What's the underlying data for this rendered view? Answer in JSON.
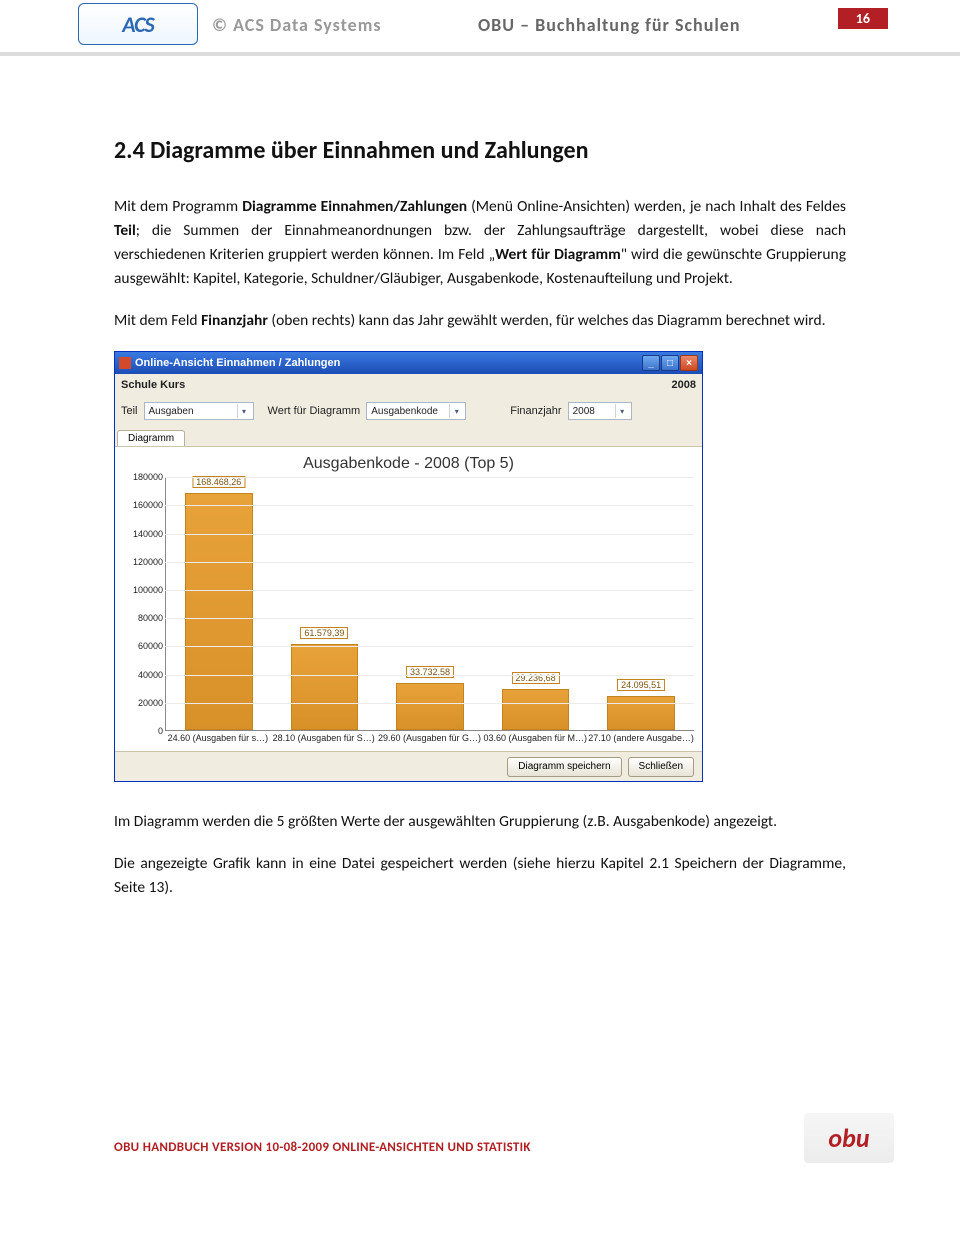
{
  "header": {
    "logo_text": "ACS",
    "copyright": "©  ACS Data Systems",
    "title": "OBU – Buchhaltung für Schulen",
    "page_number": "16"
  },
  "section": {
    "heading": "2.4 Diagramme über Einnahmen und Zahlungen",
    "p1_a": "Mit dem Programm ",
    "p1_b": "Diagramme Einnahmen/Zahlungen",
    "p1_c": " (Menü Online-Ansichten) werden, je nach Inhalt des Feldes ",
    "p1_d": "Teil",
    "p1_e": "; die Summen der Einnahmeanordnungen bzw. der Zahlungsaufträge dargestellt, wobei diese nach verschiedenen Kriterien gruppiert werden können. Im Feld „",
    "p1_f": "Wert für Diagramm",
    "p1_g": "\" wird die gewünschte Gruppierung ausgewählt: Kapitel, Kategorie, Schuldner/Gläubiger, Ausgabenkode, Kostenaufteilung und Projekt.",
    "p2_a": "Mit dem Feld ",
    "p2_b": "Finanzjahr",
    "p2_c": " (oben rechts) kann das Jahr gewählt werden, für welches das Diagramm berechnet wird.",
    "p3": "Im Diagramm werden die 5 größten Werte der ausgewählten Gruppierung (z.B. Ausgabenkode) angezeigt.",
    "p4": "Die angezeigte Grafik kann in eine Datei gespeichert werden (siehe hierzu Kapitel 2.1 Speichern der Diagramme, Seite 13)."
  },
  "app": {
    "titlebar_text": "Online-Ansicht Einnahmen / Zahlungen",
    "schule_label": "Schule Kurs",
    "schule_year": "2008",
    "filters": {
      "teil_label": "Teil",
      "teil_value": "Ausgaben",
      "wert_label": "Wert für Diagramm",
      "wert_value": "Ausgabenkode",
      "jahr_label": "Finanzjahr",
      "jahr_value": "2008"
    },
    "tab_label": "Diagramm",
    "buttons": {
      "save": "Diagramm speichern",
      "close": "Schließen"
    }
  },
  "chart": {
    "type": "bar",
    "title": "Ausgabenkode - 2008 (Top 5)",
    "title_fontsize": 16,
    "y_max": 180000,
    "y_step": 20000,
    "y_ticks": [
      "0",
      "20000",
      "40000",
      "60000",
      "80000",
      "100000",
      "120000",
      "140000",
      "160000",
      "180000"
    ],
    "y_tick_positions_pct": [
      100,
      88.89,
      77.78,
      66.67,
      55.56,
      44.44,
      33.33,
      22.22,
      11.11,
      0
    ],
    "bar_fill": "#e8a23a",
    "bar_border": "#c5831f",
    "label_border": "#c5831f",
    "label_text_color": "#7a5410",
    "grid_color": "#ebebeb",
    "axis_color": "#888888",
    "background": "#ffffff",
    "bar_width_ratio": 0.64,
    "categories": [
      "24.60 (Ausgaben für s…)",
      "28.10 (Ausgaben für S…)",
      "29.60 (Ausgaben für G…)",
      "03.60 (Ausgaben für M…)",
      "27.10 (andere Ausgabe…)"
    ],
    "value_labels": [
      "168.468,26",
      "61.579,39",
      "33.732,58",
      "29.236,68",
      "24.095,51"
    ],
    "values": [
      168468.26,
      61579.39,
      33732.58,
      29236.68,
      24095.51
    ]
  },
  "footer": {
    "line": "OBU HANDBUCH VERSION 10-08-2009 ONLINE-ANSICHTEN UND STATISTIK",
    "logo_text": "obu"
  }
}
